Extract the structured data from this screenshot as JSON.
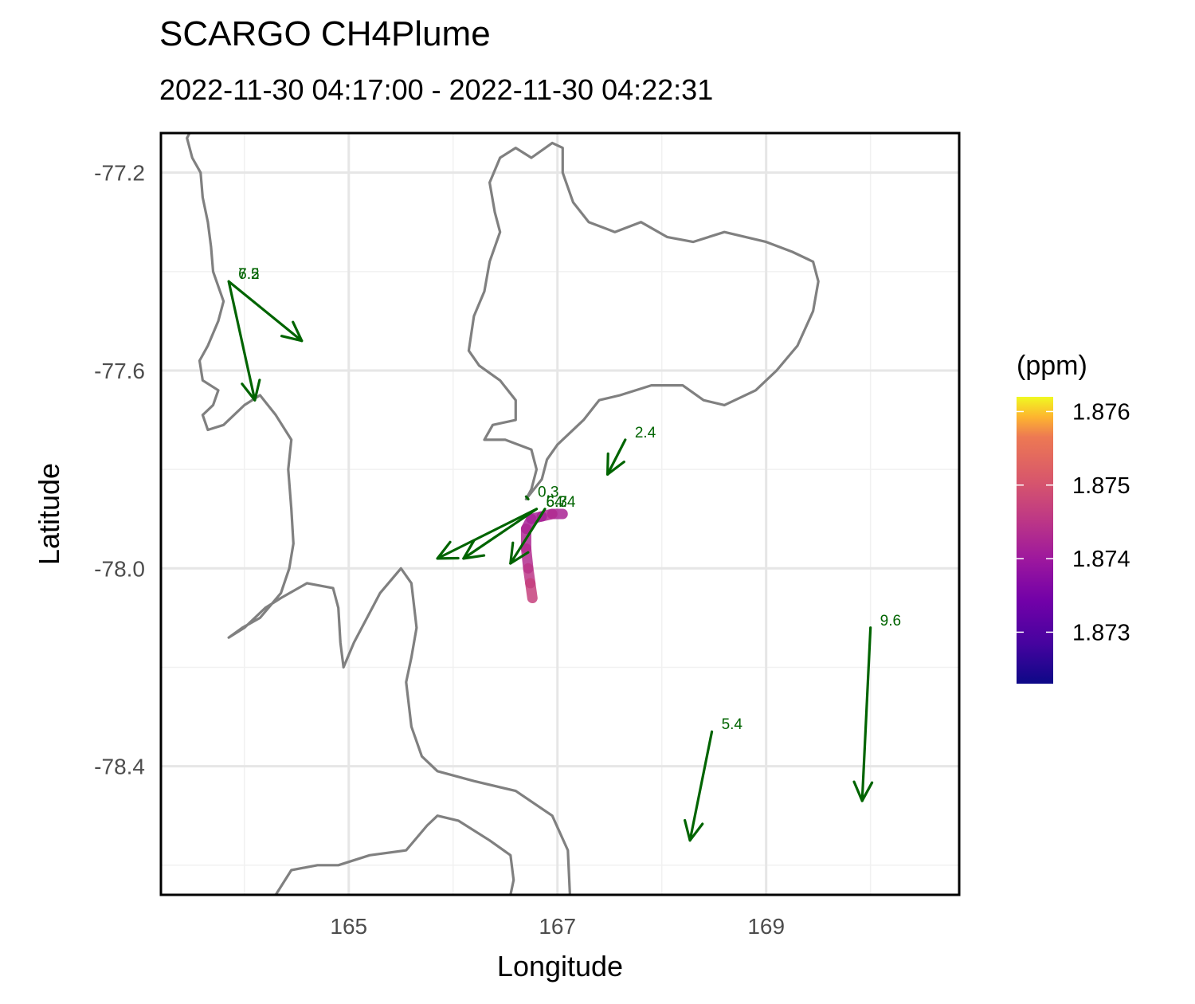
{
  "title": "SCARGO CH4Plume",
  "subtitle": "2022-11-30 04:17:00 - 2022-11-30 04:22:31",
  "colors": {
    "coastline": "#808080",
    "wind": "#006400",
    "grid_major": "#e6e6e6",
    "grid_minor": "#f1f1f1",
    "panel_border": "#000000"
  },
  "chart_data": {
    "type": "map",
    "xlabel": "Longitude",
    "ylabel": "Latitude",
    "xlim": [
      163.2,
      170.85
    ],
    "ylim": [
      -78.66,
      -77.12
    ],
    "x_ticks": [
      {
        "value": 165,
        "label": "165"
      },
      {
        "value": 167,
        "label": "167"
      },
      {
        "value": 169,
        "label": "169"
      }
    ],
    "y_ticks": [
      {
        "value": -77.2,
        "label": "-77.2"
      },
      {
        "value": -77.6,
        "label": "-77.6"
      },
      {
        "value": -78.0,
        "label": "-78.0"
      },
      {
        "value": -78.4,
        "label": "-78.4"
      }
    ],
    "grid": true,
    "legend": {
      "title": "(ppm)",
      "placement": "right",
      "colormap": "plasma",
      "range": [
        1.8723,
        1.8762
      ],
      "ticks": [
        {
          "value": 1.876,
          "label": "1.876"
        },
        {
          "value": 1.875,
          "label": "1.875"
        },
        {
          "value": 1.874,
          "label": "1.874"
        },
        {
          "value": 1.873,
          "label": "1.873"
        }
      ]
    },
    "wind_vectors": [
      {
        "label": "7.2",
        "lon0": 163.85,
        "lat0": -77.42,
        "lon1": 164.55,
        "lat1": -77.54
      },
      {
        "label": "6.5",
        "lon0": 163.85,
        "lat0": -77.42,
        "lon1": 164.1,
        "lat1": -77.66
      },
      {
        "label": "0.3",
        "lon0": 166.72,
        "lat0": -77.86,
        "lon1": 166.7,
        "lat1": -77.855
      },
      {
        "label": "5.7",
        "lon0": 166.8,
        "lat0": -77.88,
        "lon1": 165.85,
        "lat1": -77.98
      },
      {
        "label": "6.3",
        "lon0": 166.8,
        "lat0": -77.88,
        "lon1": 166.1,
        "lat1": -77.98
      },
      {
        "label": "4.4",
        "lon0": 166.88,
        "lat0": -77.88,
        "lon1": 166.55,
        "lat1": -77.99
      },
      {
        "label": "2.4",
        "lon0": 167.65,
        "lat0": -77.74,
        "lon1": 167.48,
        "lat1": -77.81
      },
      {
        "label": "9.6",
        "lon0": 170.0,
        "lat0": -78.12,
        "lon1": 169.92,
        "lat1": -78.47
      },
      {
        "label": "5.4",
        "lon0": 168.48,
        "lat0": -78.33,
        "lon1": 168.27,
        "lat1": -78.55
      }
    ],
    "plume_track": [
      {
        "lon": 167.05,
        "lat": -77.89,
        "ch4": 1.874
      },
      {
        "lon": 166.95,
        "lat": -77.89,
        "ch4": 1.8744
      },
      {
        "lon": 166.85,
        "lat": -77.895,
        "ch4": 1.8742
      },
      {
        "lon": 166.75,
        "lat": -77.9,
        "ch4": 1.8741
      },
      {
        "lon": 166.7,
        "lat": -77.92,
        "ch4": 1.8742
      },
      {
        "lon": 166.7,
        "lat": -77.96,
        "ch4": 1.8743
      },
      {
        "lon": 166.72,
        "lat": -78.0,
        "ch4": 1.8744
      },
      {
        "lon": 166.74,
        "lat": -78.03,
        "ch4": 1.8746
      },
      {
        "lon": 166.76,
        "lat": -78.06,
        "ch4": 1.8748
      }
    ],
    "coastlines": [
      [
        [
          163.475,
          -77.12
        ],
        [
          163.45,
          -77.13
        ],
        [
          163.5,
          -77.17
        ],
        [
          163.58,
          -77.2
        ],
        [
          163.6,
          -77.25
        ],
        [
          163.65,
          -77.3
        ],
        [
          163.68,
          -77.35
        ],
        [
          163.7,
          -77.4
        ],
        [
          163.75,
          -77.43
        ],
        [
          163.8,
          -77.46
        ],
        [
          163.75,
          -77.5
        ],
        [
          163.65,
          -77.55
        ],
        [
          163.57,
          -77.58
        ],
        [
          163.6,
          -77.62
        ],
        [
          163.75,
          -77.64
        ],
        [
          163.7,
          -77.67
        ],
        [
          163.6,
          -77.69
        ],
        [
          163.65,
          -77.72
        ],
        [
          163.8,
          -77.71
        ],
        [
          164.0,
          -77.67
        ],
        [
          164.15,
          -77.65
        ],
        [
          164.3,
          -77.69
        ],
        [
          164.45,
          -77.74
        ],
        [
          164.42,
          -77.8
        ],
        [
          164.45,
          -77.88
        ],
        [
          164.47,
          -77.95
        ],
        [
          164.43,
          -78.0
        ],
        [
          164.35,
          -78.05
        ],
        [
          164.15,
          -78.1
        ],
        [
          163.98,
          -78.12
        ],
        [
          163.85,
          -78.14
        ],
        [
          164.0,
          -78.12
        ],
        [
          164.2,
          -78.08
        ],
        [
          164.35,
          -78.06
        ],
        [
          164.6,
          -78.03
        ],
        [
          164.85,
          -78.04
        ],
        [
          164.9,
          -78.08
        ],
        [
          164.92,
          -78.15
        ],
        [
          164.95,
          -78.2
        ],
        [
          165.05,
          -78.15
        ],
        [
          165.3,
          -78.05
        ],
        [
          165.5,
          -78.0
        ],
        [
          165.6,
          -78.03
        ],
        [
          165.65,
          -78.12
        ],
        [
          165.6,
          -78.18
        ],
        [
          165.55,
          -78.23
        ],
        [
          165.6,
          -78.32
        ],
        [
          165.7,
          -78.38
        ],
        [
          165.85,
          -78.41
        ],
        [
          166.2,
          -78.43
        ],
        [
          166.6,
          -78.45
        ],
        [
          166.95,
          -78.5
        ],
        [
          167.1,
          -78.57
        ],
        [
          167.12,
          -78.66
        ]
      ],
      [
        [
          164.3,
          -78.66
        ],
        [
          164.45,
          -78.61
        ],
        [
          164.7,
          -78.6
        ],
        [
          164.9,
          -78.6
        ],
        [
          165.2,
          -78.58
        ],
        [
          165.55,
          -78.57
        ],
        [
          165.75,
          -78.52
        ],
        [
          165.85,
          -78.5
        ],
        [
          166.05,
          -78.51
        ],
        [
          166.35,
          -78.55
        ],
        [
          166.55,
          -78.58
        ],
        [
          166.58,
          -78.63
        ],
        [
          166.55,
          -78.66
        ]
      ],
      [
        [
          166.7,
          -77.86
        ],
        [
          166.85,
          -77.82
        ],
        [
          166.9,
          -77.78
        ],
        [
          167.0,
          -77.75
        ],
        [
          167.25,
          -77.7
        ],
        [
          167.4,
          -77.66
        ],
        [
          167.6,
          -77.65
        ],
        [
          167.9,
          -77.63
        ],
        [
          168.2,
          -77.63
        ],
        [
          168.4,
          -77.66
        ],
        [
          168.6,
          -77.67
        ],
        [
          168.9,
          -77.64
        ],
        [
          169.1,
          -77.6
        ],
        [
          169.3,
          -77.55
        ],
        [
          169.45,
          -77.48
        ],
        [
          169.5,
          -77.42
        ],
        [
          169.45,
          -77.38
        ],
        [
          169.25,
          -77.36
        ],
        [
          169.0,
          -77.34
        ],
        [
          168.6,
          -77.32
        ],
        [
          168.3,
          -77.34
        ],
        [
          168.05,
          -77.33
        ],
        [
          167.8,
          -77.3
        ],
        [
          167.55,
          -77.32
        ],
        [
          167.3,
          -77.3
        ],
        [
          167.15,
          -77.26
        ],
        [
          167.05,
          -77.2
        ],
        [
          167.05,
          -77.15
        ],
        [
          166.95,
          -77.14
        ],
        [
          166.75,
          -77.17
        ],
        [
          166.6,
          -77.15
        ],
        [
          166.45,
          -77.17
        ],
        [
          166.35,
          -77.22
        ],
        [
          166.4,
          -77.28
        ],
        [
          166.45,
          -77.32
        ],
        [
          166.35,
          -77.38
        ],
        [
          166.3,
          -77.44
        ],
        [
          166.2,
          -77.49
        ],
        [
          166.15,
          -77.56
        ],
        [
          166.25,
          -77.59
        ],
        [
          166.45,
          -77.62
        ],
        [
          166.6,
          -77.66
        ],
        [
          166.6,
          -77.7
        ],
        [
          166.38,
          -77.71
        ],
        [
          166.3,
          -77.74
        ],
        [
          166.5,
          -77.74
        ],
        [
          166.75,
          -77.76
        ],
        [
          166.8,
          -77.8
        ],
        [
          166.75,
          -77.84
        ],
        [
          166.7,
          -77.86
        ]
      ]
    ]
  }
}
